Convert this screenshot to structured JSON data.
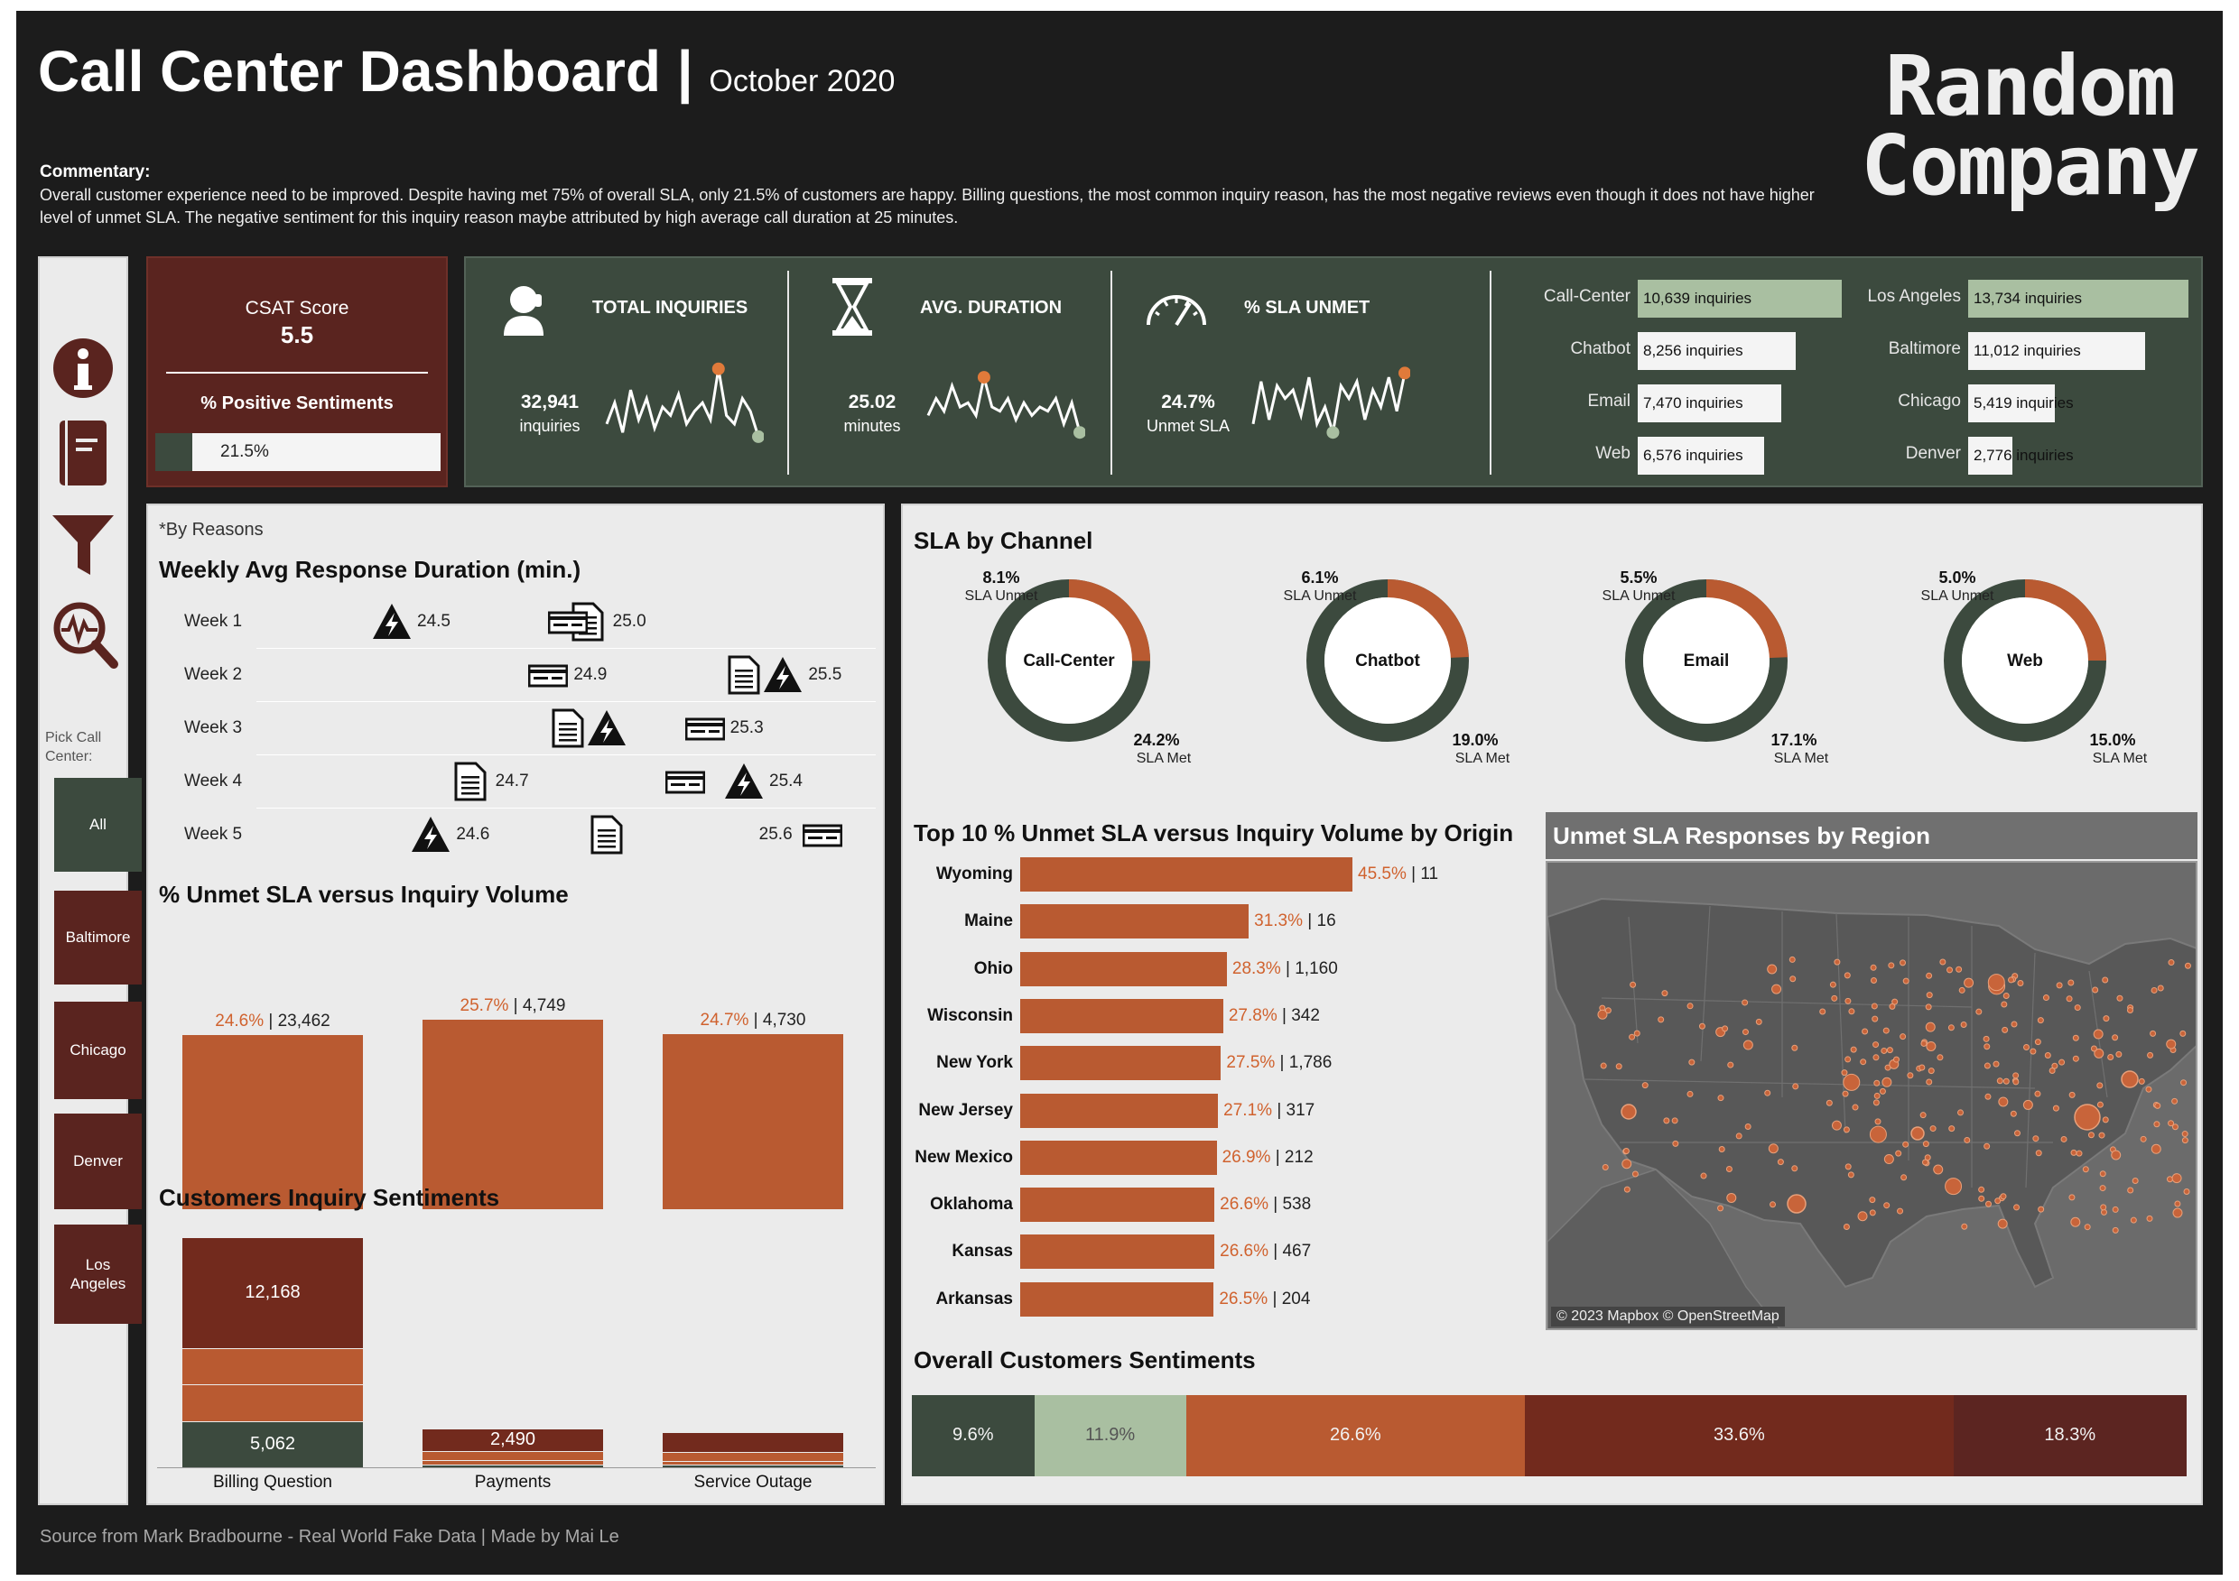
{
  "header": {
    "title": "Call Center Dashboard",
    "separator": "|",
    "subtitle": "October 2020",
    "commentary_label": "Commentary:",
    "commentary": "Overall customer experience need to be improved. Despite having met 75% of overall SLA, only 21.5% of customers are happy. Billing questions, the most common inquiry reason, has the most negative reviews even though it does not have higher level of unmet SLA. The negative sentiment for this inquiry reason maybe attributed by high average call duration at 25 minutes.",
    "logo_line1": "Random",
    "logo_line2": "Company"
  },
  "footer": {
    "source": "Source from Mark Bradbourne - Real World Fake Data | Made by Mai Le"
  },
  "sidebar": {
    "icons": [
      "info-icon",
      "book-icon",
      "filter-icon",
      "analytics-icon"
    ],
    "pick_label": "Pick Call Center:",
    "items": [
      {
        "label": "All",
        "selected": true
      },
      {
        "label": "Baltimore"
      },
      {
        "label": "Chicago"
      },
      {
        "label": "Denver"
      },
      {
        "label": "Los Angeles"
      }
    ]
  },
  "csat": {
    "title": "CSAT Score",
    "score": "5.5",
    "pos_title": "% Positive Sentiments",
    "pos_value": "21.5%",
    "pos_fraction": 0.215
  },
  "kpis": [
    {
      "name": "total-inquiries",
      "icon": "headset-icon",
      "title": "TOTAL INQUIRIES",
      "value": "32,941",
      "unit": "inquiries",
      "spark": [
        0.3,
        0.55,
        0.2,
        0.7,
        0.35,
        0.6,
        0.25,
        0.5,
        0.4,
        0.65,
        0.3,
        0.45,
        0.55,
        0.35,
        0.95,
        0.4,
        0.3,
        0.6,
        0.45,
        0.15
      ]
    },
    {
      "name": "avg-duration",
      "icon": "hourglass-icon",
      "title": "AVG. DURATION",
      "value": "25.02",
      "unit": "minutes",
      "spark": [
        0.4,
        0.6,
        0.45,
        0.75,
        0.5,
        0.55,
        0.4,
        0.85,
        0.5,
        0.45,
        0.6,
        0.35,
        0.55,
        0.4,
        0.5,
        0.45,
        0.6,
        0.3,
        0.55,
        0.2
      ]
    },
    {
      "name": "sla-unmet",
      "icon": "speedometer-icon",
      "title": "% SLA UNMET",
      "value": "24.7%",
      "unit": "Unmet SLA",
      "spark": [
        0.3,
        0.8,
        0.35,
        0.75,
        0.6,
        0.7,
        0.4,
        0.85,
        0.3,
        0.5,
        0.2,
        0.75,
        0.6,
        0.8,
        0.35,
        0.7,
        0.5,
        0.85,
        0.45,
        0.9
      ]
    }
  ],
  "channels_inquiries": [
    {
      "label": "Call-Center",
      "text": "10,639 inquiries",
      "value": 10639,
      "highlight": true
    },
    {
      "label": "Chatbot",
      "text": "8,256 inquiries",
      "value": 8256
    },
    {
      "label": "Email",
      "text": "7,470 inquiries",
      "value": 7470
    },
    {
      "label": "Web",
      "text": "6,576 inquiries",
      "value": 6576
    }
  ],
  "cities_inquiries": [
    {
      "label": "Los Angeles",
      "text": "13,734 inquiries",
      "value": 13734,
      "highlight": true
    },
    {
      "label": "Baltimore",
      "text": "11,012 inquiries",
      "value": 11012
    },
    {
      "label": "Chicago",
      "text": "5,419 inquiries",
      "value": 5419
    },
    {
      "label": "Denver",
      "text": "2,776 inquiries",
      "value": 2776
    }
  ],
  "weekly": {
    "note": "*By Reasons",
    "title": "Weekly Avg Response Duration (min.)",
    "rows": [
      {
        "week": "Week 1",
        "items": [
          {
            "icon": "outage-icon",
            "value": 24.5,
            "label": "24.5"
          },
          {
            "icon": "billing-icon",
            "value": 25.0,
            "label": "25.0"
          },
          {
            "icon": "payment-icon",
            "value": 24.95,
            "label": ""
          }
        ]
      },
      {
        "week": "Week 2",
        "items": [
          {
            "icon": "payment-icon",
            "value": 24.9,
            "label": "24.9"
          },
          {
            "icon": "billing-icon",
            "value": 25.4,
            "label": ""
          },
          {
            "icon": "outage-icon",
            "value": 25.5,
            "label": "25.5"
          }
        ]
      },
      {
        "week": "Week 3",
        "items": [
          {
            "icon": "billing-icon",
            "value": 24.95,
            "label": ""
          },
          {
            "icon": "outage-icon",
            "value": 25.05,
            "label": ""
          },
          {
            "icon": "payment-icon",
            "value": 25.3,
            "label": "25.3"
          }
        ]
      },
      {
        "week": "Week 4",
        "items": [
          {
            "icon": "billing-icon",
            "value": 24.7,
            "label": "24.7"
          },
          {
            "icon": "payment-icon",
            "value": 25.25,
            "label": ""
          },
          {
            "icon": "outage-icon",
            "value": 25.4,
            "label": "25.4"
          }
        ]
      },
      {
        "week": "Week 5",
        "items": [
          {
            "icon": "outage-icon",
            "value": 24.6,
            "label": "24.6"
          },
          {
            "icon": "billing-icon",
            "value": 25.05,
            "label": ""
          },
          {
            "icon": "payment-icon",
            "value": 25.6,
            "label": "25.6"
          }
        ]
      }
    ],
    "xmin": 24.2,
    "xmax": 25.7
  },
  "unmet_volume": {
    "title": "% Unmet SLA versus Inquiry Volume",
    "bars": [
      {
        "pct": "24.6%",
        "vol": "| 23,462",
        "pct_value": 24.6
      },
      {
        "pct": "25.7%",
        "vol": "| 4,749",
        "pct_value": 25.7
      },
      {
        "pct": "24.7%",
        "vol": "| 4,730",
        "pct_value": 24.7
      }
    ]
  },
  "sentiments": {
    "title": "Customers Inquiry Sentiments",
    "categories": [
      "Billing Question",
      "Payments",
      "Service Outage"
    ],
    "stacks": [
      {
        "segments": [
          5062,
          4000,
          4000,
          12168
        ],
        "labels": {
          "0": "5,062",
          "3": "12,168"
        }
      },
      {
        "segments": [
          300,
          500,
          1000,
          2490
        ],
        "labels": {
          "3": "2,490"
        }
      },
      {
        "segments": [
          300,
          400,
          1000,
          2200
        ],
        "labels": {}
      }
    ],
    "max": 25500
  },
  "sla_channel": {
    "title": "SLA by Channel",
    "items": [
      {
        "name": "Call-Center",
        "unmet": "8.1%",
        "met": "24.2%",
        "unmet_value": 8.1,
        "met_value": 24.2
      },
      {
        "name": "Chatbot",
        "unmet": "6.1%",
        "met": "19.0%",
        "unmet_value": 6.1,
        "met_value": 19.0
      },
      {
        "name": "Email",
        "unmet": "5.5%",
        "met": "17.1%",
        "unmet_value": 5.5,
        "met_value": 17.1
      },
      {
        "name": "Web",
        "unmet": "5.0%",
        "met": "15.0%",
        "unmet_value": 5.0,
        "met_value": 15.0
      }
    ],
    "unmet_label": "SLA Unmet",
    "met_label": "SLA Met"
  },
  "top10": {
    "title": "Top 10 % Unmet SLA versus Inquiry Volume by Origin",
    "rows": [
      {
        "state": "Wyoming",
        "pct": "45.5%",
        "vol": "| 11",
        "value": 45.5
      },
      {
        "state": "Maine",
        "pct": "31.3%",
        "vol": "| 16",
        "value": 31.3
      },
      {
        "state": "Ohio",
        "pct": "28.3%",
        "vol": "| 1,160",
        "value": 28.3
      },
      {
        "state": "Wisconsin",
        "pct": "27.8%",
        "vol": "| 342",
        "value": 27.8
      },
      {
        "state": "New York",
        "pct": "27.5%",
        "vol": "| 1,786",
        "value": 27.5
      },
      {
        "state": "New Jersey",
        "pct": "27.1%",
        "vol": "| 317",
        "value": 27.1
      },
      {
        "state": "New Mexico",
        "pct": "26.9%",
        "vol": "| 212",
        "value": 26.9
      },
      {
        "state": "Oklahoma",
        "pct": "26.6%",
        "vol": "| 538",
        "value": 26.6
      },
      {
        "state": "Kansas",
        "pct": "26.6%",
        "vol": "| 467",
        "value": 26.6
      },
      {
        "state": "Arkansas",
        "pct": "26.5%",
        "vol": "| 204",
        "value": 26.5
      }
    ]
  },
  "map": {
    "title": "Unmet SLA Responses by Region",
    "attribution": "© 2023 Mapbox © OpenStreetMap"
  },
  "overall": {
    "title": "Overall Customers Sentiments",
    "segments": [
      {
        "label": "9.6%",
        "value": 9.6,
        "color": "#3c4a3e"
      },
      {
        "label": "11.9%",
        "value": 11.9,
        "color": "#a9bfa1"
      },
      {
        "label": "26.6%",
        "value": 26.6,
        "color": "#b95a31"
      },
      {
        "label": "33.6%",
        "value": 33.6,
        "color": "#722a1d"
      },
      {
        "label": "18.3%",
        "value": 18.3,
        "color": "#5c2521"
      }
    ]
  },
  "colors": {
    "dark_green": "#3c4a3e",
    "light_green": "#a9bfa1",
    "orange": "#b95a31",
    "rust": "#722a1d",
    "maroon": "#5c2521",
    "panel": "#ebebeb",
    "bg": "#1c1c1c"
  }
}
